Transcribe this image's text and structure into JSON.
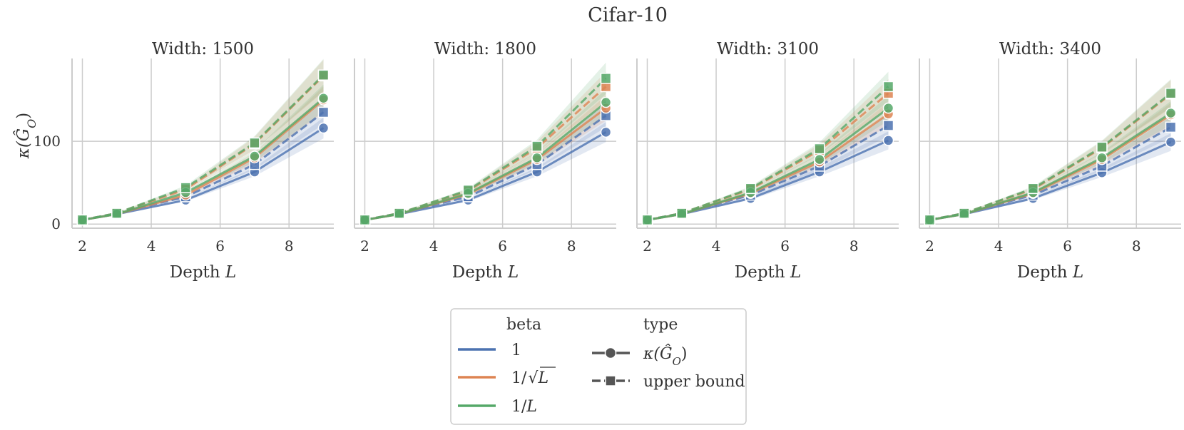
{
  "colors": {
    "beta_1": "#4c72b0",
    "beta_inv_sqrt_L": "#dd8452",
    "beta_inv_L": "#55a868",
    "type_marker": "#555555",
    "grid": "#cccccc",
    "frame": "#cccccc",
    "text": "#333333"
  },
  "chart_data": [
    {
      "type": "line",
      "title": "Width: 1500",
      "xlabel": "Depth",
      "xlabel_var": "L",
      "ylabel": "κ(Ĝ",
      "ylabel_sub": "O",
      "ylabel_close": ")",
      "x": [
        2,
        3,
        5,
        7,
        9
      ],
      "xlim": [
        1.7,
        9.3
      ],
      "ylim": [
        -5,
        200
      ],
      "xticks": [
        "2",
        "4",
        "6",
        "8"
      ],
      "yticks": [
        "0",
        "100"
      ],
      "series": [
        {
          "beta": "1",
          "type": "kappa",
          "values": [
            5,
            12,
            29,
            63,
            116
          ]
        },
        {
          "beta": "1",
          "type": "upper bound",
          "values": [
            5,
            13,
            33,
            72,
            135
          ]
        },
        {
          "beta": "1/sqrt(L)",
          "type": "kappa",
          "values": [
            5,
            12,
            35,
            80,
            150
          ]
        },
        {
          "beta": "1/sqrt(L)",
          "type": "upper bound",
          "values": [
            5,
            13,
            42,
            97,
            179
          ]
        },
        {
          "beta": "1/L",
          "type": "kappa",
          "values": [
            5,
            12,
            38,
            82,
            152
          ]
        },
        {
          "beta": "1/L",
          "type": "upper bound",
          "values": [
            5,
            13,
            44,
            98,
            180
          ]
        }
      ]
    },
    {
      "type": "line",
      "title": "Width: 1800",
      "xlabel": "Depth",
      "xlabel_var": "L",
      "x": [
        2,
        3,
        5,
        7,
        9
      ],
      "xlim": [
        1.7,
        9.3
      ],
      "ylim": [
        -5,
        200
      ],
      "xticks": [
        "2",
        "4",
        "6",
        "8"
      ],
      "series": [
        {
          "beta": "1",
          "type": "kappa",
          "values": [
            5,
            12,
            29,
            63,
            111
          ]
        },
        {
          "beta": "1",
          "type": "upper bound",
          "values": [
            5,
            13,
            33,
            72,
            131
          ]
        },
        {
          "beta": "1/sqrt(L)",
          "type": "kappa",
          "values": [
            5,
            12,
            36,
            78,
            140
          ]
        },
        {
          "beta": "1/sqrt(L)",
          "type": "upper bound",
          "values": [
            5,
            13,
            40,
            92,
            166
          ]
        },
        {
          "beta": "1/L",
          "type": "kappa",
          "values": [
            5,
            12,
            37,
            80,
            147
          ]
        },
        {
          "beta": "1/L",
          "type": "upper bound",
          "values": [
            5,
            13,
            41,
            94,
            176
          ]
        }
      ]
    },
    {
      "type": "line",
      "title": "Width: 3100",
      "xlabel": "Depth",
      "xlabel_var": "L",
      "x": [
        2,
        3,
        5,
        7,
        9
      ],
      "xlim": [
        1.7,
        9.3
      ],
      "ylim": [
        -5,
        200
      ],
      "xticks": [
        "2",
        "4",
        "6",
        "8"
      ],
      "series": [
        {
          "beta": "1",
          "type": "kappa",
          "values": [
            5,
            12,
            31,
            63,
            101
          ]
        },
        {
          "beta": "1",
          "type": "upper bound",
          "values": [
            5,
            13,
            35,
            70,
            119
          ]
        },
        {
          "beta": "1/sqrt(L)",
          "type": "kappa",
          "values": [
            5,
            12,
            37,
            75,
            133
          ]
        },
        {
          "beta": "1/sqrt(L)",
          "type": "upper bound",
          "values": [
            5,
            13,
            42,
            89,
            158
          ]
        },
        {
          "beta": "1/L",
          "type": "kappa",
          "values": [
            5,
            12,
            38,
            78,
            140
          ]
        },
        {
          "beta": "1/L",
          "type": "upper bound",
          "values": [
            5,
            13,
            43,
            91,
            166
          ]
        }
      ]
    },
    {
      "type": "line",
      "title": "Width: 3400",
      "xlabel": "Depth",
      "xlabel_var": "L",
      "x": [
        2,
        3,
        5,
        7,
        9
      ],
      "xlim": [
        1.7,
        9.3
      ],
      "ylim": [
        -5,
        200
      ],
      "xticks": [
        "2",
        "4",
        "6",
        "8"
      ],
      "series": [
        {
          "beta": "1",
          "type": "kappa",
          "values": [
            5,
            12,
            31,
            62,
            99
          ]
        },
        {
          "beta": "1",
          "type": "upper bound",
          "values": [
            5,
            13,
            35,
            70,
            117
          ]
        },
        {
          "beta": "1/sqrt(L)",
          "type": "kappa",
          "values": [
            5,
            12,
            37,
            78,
            132
          ]
        },
        {
          "beta": "1/sqrt(L)",
          "type": "upper bound",
          "values": [
            5,
            13,
            42,
            92,
            157
          ]
        },
        {
          "beta": "1/L",
          "type": "kappa",
          "values": [
            5,
            12,
            38,
            80,
            134
          ]
        },
        {
          "beta": "1/L",
          "type": "upper bound",
          "values": [
            5,
            13,
            43,
            93,
            158
          ]
        }
      ]
    }
  ],
  "figure": {
    "title": "Cifar-10"
  },
  "legend": {
    "beta_header": "beta",
    "beta_items": [
      {
        "key": "1",
        "label": "1"
      },
      {
        "key": "1/sqrt(L)",
        "label_prefix": "1/",
        "label_radicand": "L"
      },
      {
        "key": "1/L",
        "label_prefix": "1/",
        "label_var": "L"
      }
    ],
    "type_header": "type",
    "type_items": [
      {
        "key": "kappa",
        "label_main": "κ(Ĝ",
        "label_sub": "O",
        "label_close": ")"
      },
      {
        "key": "upper bound",
        "label": "upper bound"
      }
    ]
  }
}
